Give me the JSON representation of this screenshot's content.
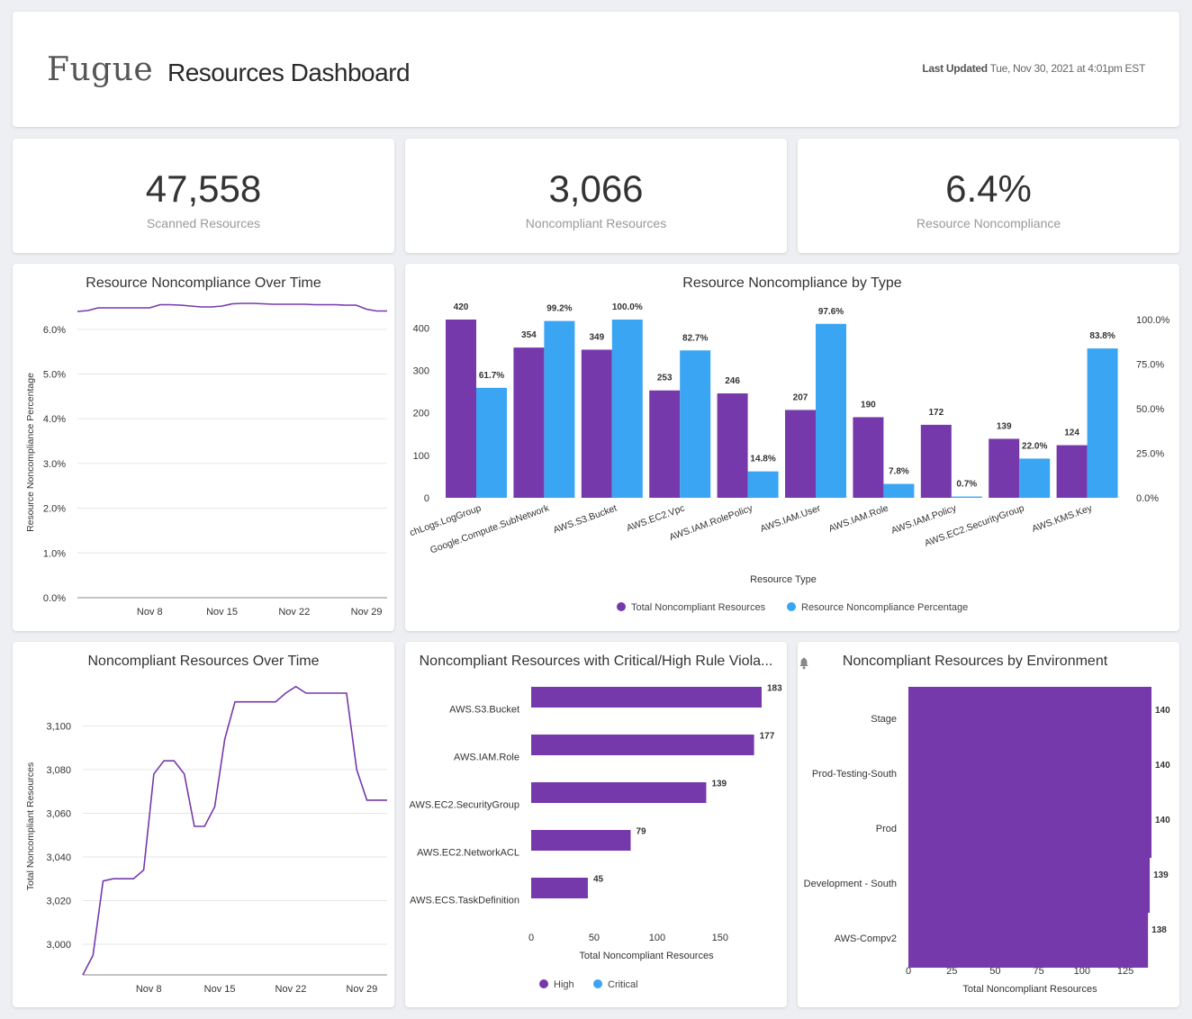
{
  "header": {
    "logo": "Fugue",
    "title": "Resources Dashboard",
    "last_updated_label": "Last Updated",
    "last_updated_value": "Tue, Nov 30, 2021 at 4:01pm EST"
  },
  "kpis": [
    {
      "value": "47,558",
      "label": "Scanned Resources"
    },
    {
      "value": "3,066",
      "label": "Noncompliant Resources"
    },
    {
      "value": "6.4%",
      "label": "Resource Noncompliance"
    }
  ],
  "colors": {
    "purple": "#7639ab",
    "blue": "#3aa5f3",
    "grid": "#e6e6e6",
    "axis": "#444444"
  },
  "chart_data": [
    {
      "id": "pct_over_time",
      "type": "line",
      "title": "Resource Noncompliance Over Time",
      "ylabel": "Resource Noncompliance Percentage",
      "xlabel": "",
      "ylim": [
        0,
        6.5
      ],
      "yticks": [
        0,
        1,
        2,
        3,
        4,
        5,
        6
      ],
      "ytick_labels": [
        "0.0%",
        "1.0%",
        "2.0%",
        "3.0%",
        "4.0%",
        "5.0%",
        "6.0%"
      ],
      "x_days": [
        0,
        1,
        2,
        3,
        4,
        5,
        6,
        7,
        8,
        9,
        10,
        11,
        12,
        13,
        14,
        15,
        16,
        17,
        18,
        19,
        20,
        21,
        22,
        23,
        24,
        25,
        26,
        27,
        28,
        29,
        30
      ],
      "values": [
        6.4,
        6.42,
        6.48,
        6.48,
        6.48,
        6.48,
        6.48,
        6.48,
        6.55,
        6.55,
        6.54,
        6.52,
        6.5,
        6.5,
        6.52,
        6.57,
        6.58,
        6.58,
        6.57,
        6.56,
        6.56,
        6.56,
        6.56,
        6.55,
        6.55,
        6.55,
        6.54,
        6.54,
        6.45,
        6.41,
        6.41
      ],
      "xtick_days": [
        7,
        14,
        21,
        28
      ],
      "xtick_labels": [
        "Nov 8",
        "Nov 15",
        "Nov 22",
        "Nov 29"
      ]
    },
    {
      "id": "by_type",
      "type": "bar",
      "title": "Resource Noncompliance by Type",
      "xlabel": "Resource Type",
      "categories": [
        "AWS.CloudWatchLogs.LogGroup",
        "Google.Compute.SubNetwork",
        "AWS.S3.Bucket",
        "AWS.EC2.Vpc",
        "AWS.IAM.RolePolicy",
        "AWS.IAM.User",
        "AWS.IAM.Role",
        "AWS.IAM.Policy",
        "AWS.EC2.SecurityGroup",
        "AWS.KMS.Key"
      ],
      "category_labels": [
        "chLogs.LogGroup",
        "Google.Compute.SubNetwork",
        "AWS.S3.Bucket",
        "AWS.EC2.Vpc",
        "AWS.IAM.RolePolicy",
        "AWS.IAM.User",
        "AWS.IAM.Role",
        "AWS.IAM.Policy",
        "AWS.EC2.SecurityGroup",
        "AWS.KMS.Key"
      ],
      "series": [
        {
          "name": "Total Noncompliant Resources",
          "axis": "left",
          "values": [
            420,
            354,
            349,
            253,
            246,
            207,
            190,
            172,
            139,
            124
          ],
          "labels": [
            "420",
            "354",
            "349",
            "253",
            "246",
            "207",
            "190",
            "172",
            "139",
            "124"
          ]
        },
        {
          "name": "Resource Noncompliance Percentage",
          "axis": "right",
          "values": [
            61.7,
            99.2,
            100.0,
            82.7,
            14.8,
            97.6,
            7.8,
            0.7,
            22.0,
            83.8
          ],
          "labels": [
            "61.7%",
            "99.2%",
            "100.0%",
            "82.7%",
            "14.8%",
            "97.6%",
            "7.8%",
            "0.7%",
            "22.0%",
            "83.8%"
          ]
        }
      ],
      "ylim_left": [
        0,
        420
      ],
      "yticks_left": [
        0,
        100,
        200,
        300,
        400
      ],
      "ylim_right": [
        0,
        100
      ],
      "yticks_right": [
        0,
        25,
        50,
        75,
        100
      ],
      "ytick_labels_right": [
        "0.0%",
        "25.0%",
        "50.0%",
        "75.0%",
        "100.0%"
      ],
      "legend": "bottom"
    },
    {
      "id": "count_over_time",
      "type": "line",
      "title": "Noncompliant Resources Over Time",
      "ylabel": "Total Noncompliant Resources",
      "ylim": [
        2986,
        3122
      ],
      "yticks": [
        3000,
        3020,
        3040,
        3060,
        3080,
        3100
      ],
      "ytick_labels": [
        "3,000",
        "3,020",
        "3,040",
        "3,060",
        "3,080",
        "3,100"
      ],
      "x_days": [
        0,
        1,
        2,
        3,
        4,
        5,
        6,
        7,
        8,
        9,
        10,
        11,
        12,
        13,
        14,
        15,
        16,
        17,
        18,
        19,
        20,
        21,
        22,
        23,
        24,
        25,
        26,
        27,
        28,
        29,
        30
      ],
      "values": [
        2986,
        2995,
        3029,
        3030,
        3030,
        3030,
        3034,
        3078,
        3084,
        3084,
        3078,
        3054,
        3054,
        3063,
        3094,
        3111,
        3111,
        3111,
        3111,
        3111,
        3115,
        3118,
        3115,
        3115,
        3115,
        3115,
        3115,
        3080,
        3066,
        3066,
        3066
      ],
      "xtick_days": [
        6.5,
        13.5,
        20.5,
        27.5
      ],
      "xtick_labels": [
        "Nov 8",
        "Nov 15",
        "Nov 22",
        "Nov 29"
      ]
    },
    {
      "id": "crit_high",
      "type": "bar",
      "orientation": "horizontal",
      "title": "Noncompliant Resources with Critical/High Rule Viola...",
      "xlabel": "Total Noncompliant Resources",
      "categories": [
        "AWS.S3.Bucket",
        "AWS.IAM.Role",
        "AWS.EC2.SecurityGroup",
        "AWS.EC2.NetworkACL",
        "AWS.ECS.TaskDefinition"
      ],
      "values": [
        183,
        177,
        139,
        79,
        45
      ],
      "labels": [
        "183",
        "177",
        "139",
        "79",
        "45"
      ],
      "xlim": [
        0,
        183
      ],
      "xticks": [
        0,
        50,
        100,
        150
      ],
      "legend": [
        "High",
        "Critical"
      ]
    },
    {
      "id": "by_env",
      "type": "bar",
      "orientation": "horizontal",
      "title": "Noncompliant Resources by Environment",
      "xlabel": "Total Noncompliant Resources",
      "categories": [
        "Stage",
        "Prod-Testing-South",
        "Prod",
        "Development - South",
        "AWS-Compv2"
      ],
      "values": [
        140,
        140,
        140,
        139,
        138
      ],
      "labels": [
        "140",
        "140",
        "140",
        "139",
        "138"
      ],
      "xlim": [
        0,
        140
      ],
      "xticks": [
        0,
        25,
        50,
        75,
        100,
        125
      ]
    }
  ]
}
